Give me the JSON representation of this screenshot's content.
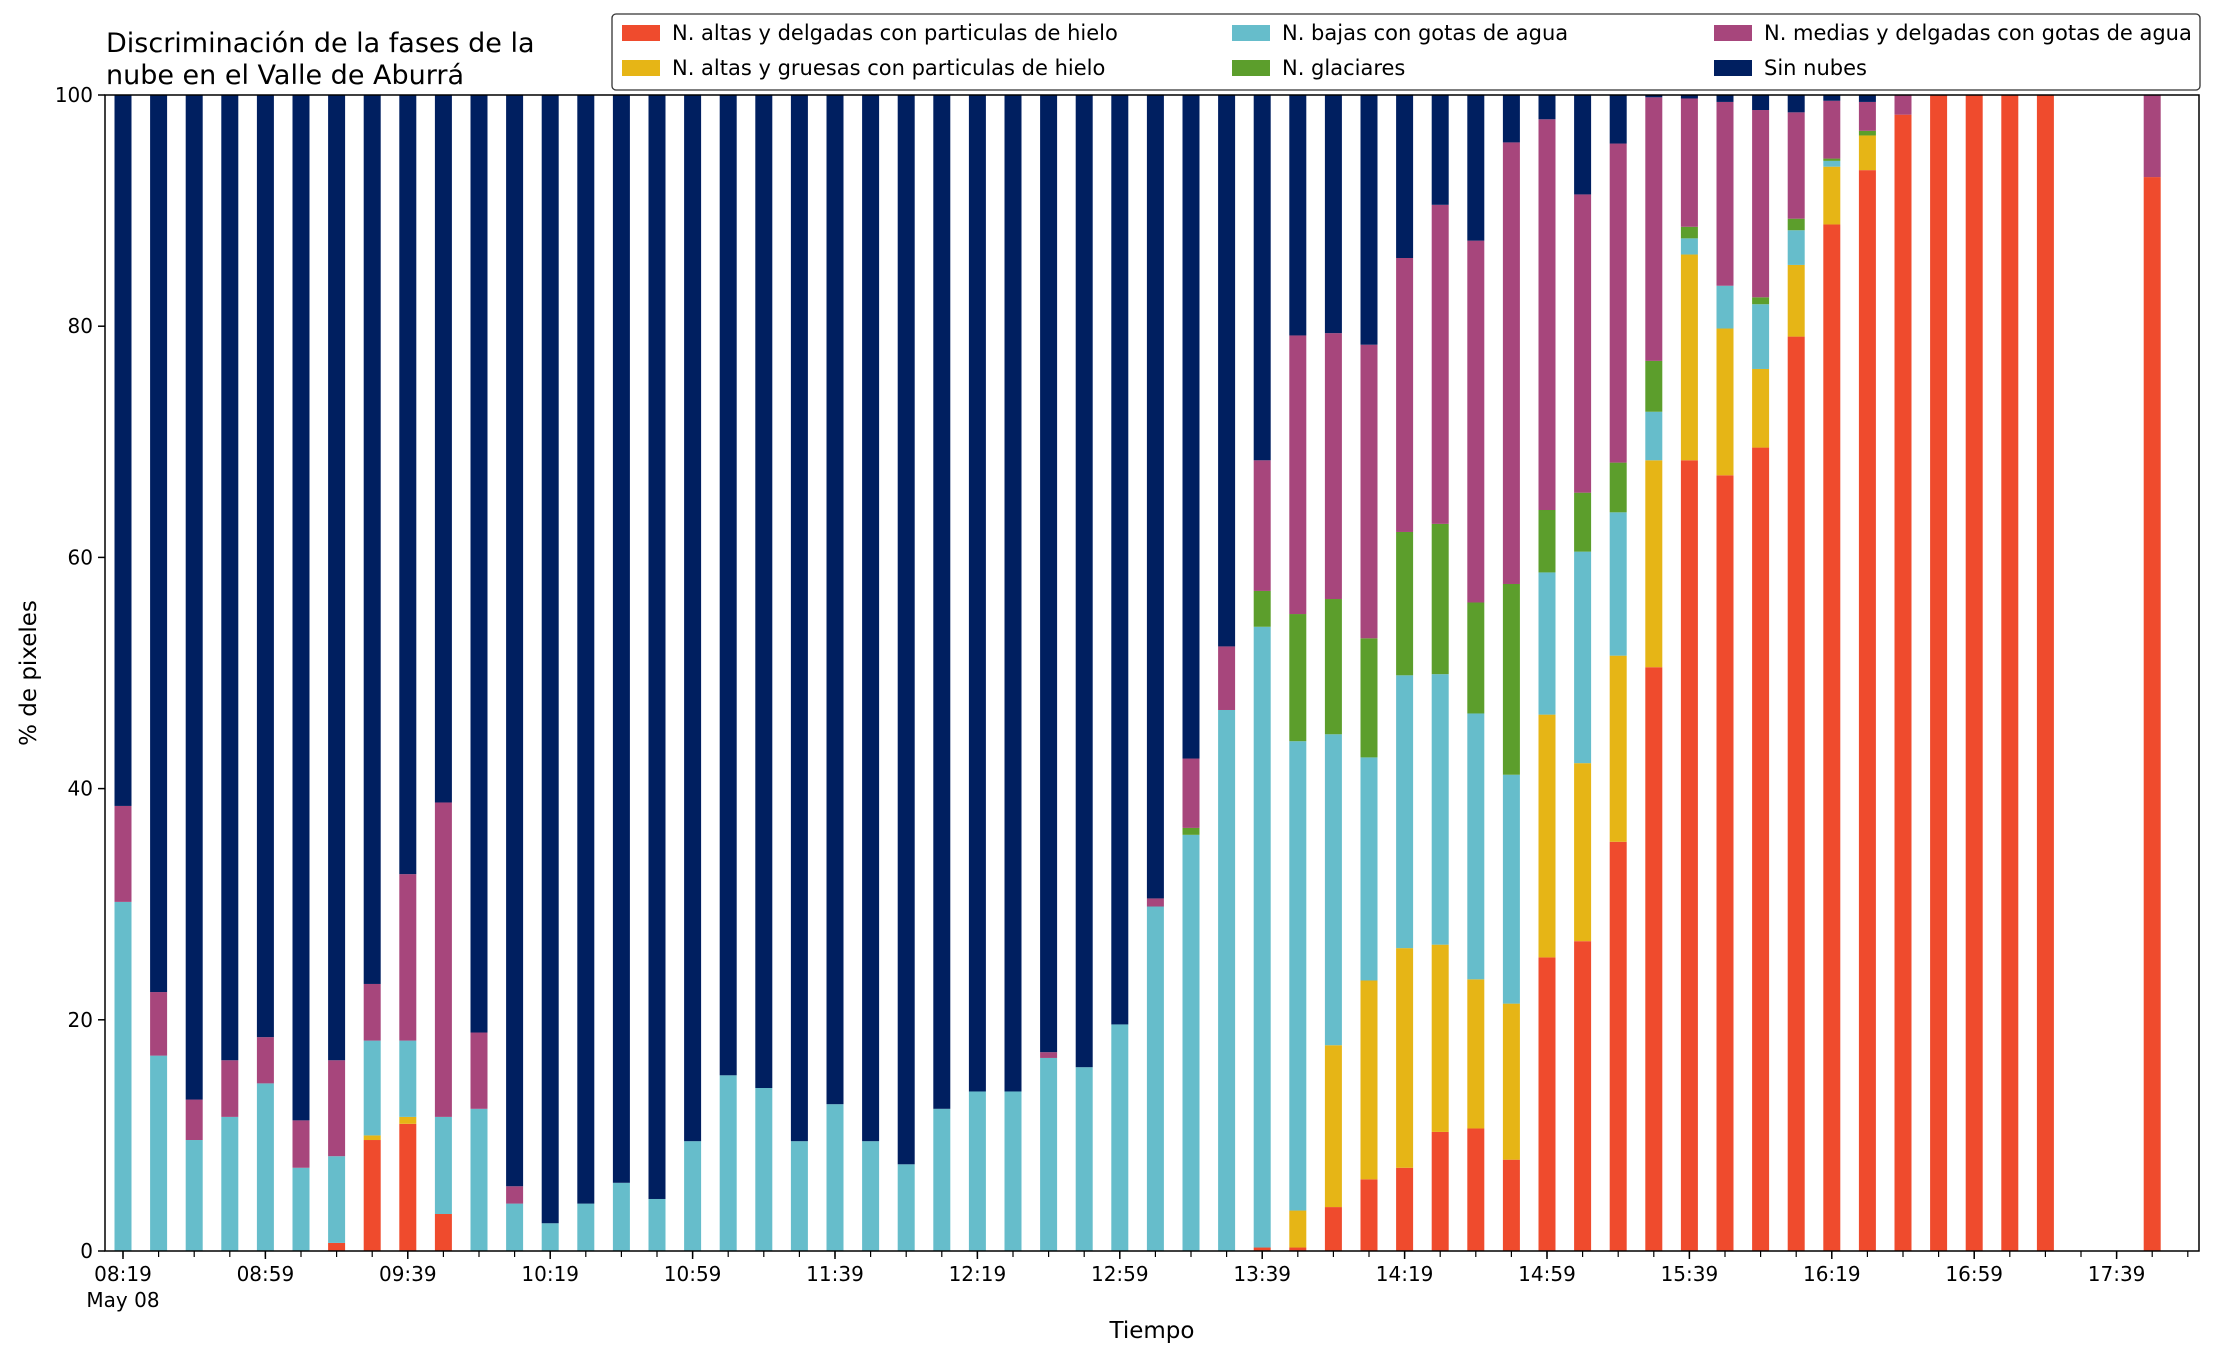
{
  "chart_data": {
    "type": "bar",
    "stacked": true,
    "title_lines": [
      "Discriminación de la fases de la",
      "nube en el Valle de Aburrá"
    ],
    "xlabel": "Tiempo",
    "ylabel": "% de pixeles",
    "ylim": [
      0,
      100
    ],
    "yticks": [
      0,
      20,
      40,
      60,
      80,
      100
    ],
    "x_tick_labels": [
      {
        "index": 0,
        "label": "08:19",
        "sub": "May 08"
      },
      {
        "index": 4,
        "label": "08:59"
      },
      {
        "index": 8,
        "label": "09:39"
      },
      {
        "index": 12,
        "label": "10:19"
      },
      {
        "index": 16,
        "label": "10:59"
      },
      {
        "index": 20,
        "label": "11:39"
      },
      {
        "index": 24,
        "label": "12:19"
      },
      {
        "index": 28,
        "label": "12:59"
      },
      {
        "index": 32,
        "label": "13:39"
      },
      {
        "index": 36,
        "label": "14:19"
      },
      {
        "index": 40,
        "label": "14:59"
      },
      {
        "index": 44,
        "label": "15:39"
      },
      {
        "index": 48,
        "label": "16:19"
      },
      {
        "index": 52,
        "label": "16:59"
      },
      {
        "index": 56,
        "label": "17:39"
      }
    ],
    "x_slots": 58,
    "grid": false,
    "legend_position": "top-right",
    "legend_columns": 3,
    "series": [
      {
        "name": "N. altas y delgadas con particulas de hielo",
        "color": "#EF4B2D",
        "values": [
          0,
          0,
          0,
          0,
          0,
          0,
          0.7,
          9.6,
          11.0,
          3.2,
          0,
          0,
          0,
          0,
          0,
          0,
          0,
          0,
          0,
          0,
          0,
          0,
          0,
          0,
          0,
          0,
          0,
          0,
          0,
          0,
          0,
          0,
          0.3,
          0.3,
          3.8,
          6.2,
          7.2,
          10.3,
          10.6,
          7.9,
          25.4,
          26.8,
          35.4,
          50.5,
          68.4,
          67.1,
          69.5,
          79.1,
          88.8,
          93.5,
          98.3,
          100,
          100,
          100,
          100,
          0,
          0,
          92.9
        ]
      },
      {
        "name": "N. altas y gruesas con particulas de hielo",
        "color": "#E6B516",
        "values": [
          0,
          0,
          0,
          0,
          0,
          0,
          0,
          0.4,
          0.6,
          0,
          0,
          0,
          0,
          0,
          0,
          0,
          0,
          0,
          0,
          0,
          0,
          0,
          0,
          0,
          0,
          0,
          0,
          0,
          0,
          0,
          0,
          0,
          0,
          3.2,
          14.0,
          17.2,
          19.0,
          16.2,
          12.9,
          13.5,
          21.0,
          15.4,
          16.1,
          17.9,
          17.8,
          12.7,
          6.8,
          6.2,
          5.0,
          3.0,
          0,
          0,
          0,
          0,
          0,
          0,
          0,
          0
        ]
      },
      {
        "name": "N. bajas con gotas de agua",
        "color": "#66BDCB",
        "values": [
          30.2,
          16.9,
          9.6,
          11.6,
          14.5,
          7.2,
          7.5,
          8.2,
          6.6,
          8.4,
          12.3,
          4.1,
          2.4,
          4.1,
          5.9,
          4.5,
          9.5,
          15.2,
          14.1,
          9.5,
          12.7,
          9.5,
          7.5,
          12.3,
          13.8,
          13.8,
          16.7,
          15.9,
          19.6,
          29.8,
          36.0,
          46.8,
          53.7,
          40.6,
          26.9,
          19.3,
          23.6,
          23.4,
          23.0,
          19.8,
          12.3,
          18.3,
          12.4,
          4.2,
          1.4,
          3.7,
          5.6,
          3.0,
          0.5,
          0,
          0,
          0,
          0,
          0,
          0,
          0,
          0,
          0
        ]
      },
      {
        "name": "N. glaciares",
        "color": "#5C9E2C",
        "values": [
          0,
          0,
          0,
          0,
          0,
          0,
          0,
          0,
          0,
          0,
          0,
          0,
          0,
          0,
          0,
          0,
          0,
          0,
          0,
          0,
          0,
          0,
          0,
          0,
          0,
          0,
          0,
          0,
          0,
          0,
          0.6,
          0,
          3.1,
          11.0,
          11.7,
          10.3,
          12.4,
          13.0,
          9.6,
          16.5,
          5.4,
          5.1,
          4.3,
          4.4,
          1.0,
          0,
          0.6,
          1.0,
          0.2,
          0.4,
          0,
          0,
          0,
          0,
          0,
          0,
          0,
          0
        ]
      },
      {
        "name": "N. medias y delgadas con gotas de agua",
        "color": "#A7467C",
        "values": [
          8.3,
          5.5,
          3.5,
          4.9,
          4.0,
          4.1,
          8.3,
          4.9,
          14.4,
          27.2,
          6.6,
          1.5,
          0,
          0,
          0,
          0,
          0,
          0,
          0,
          0,
          0,
          0,
          0,
          0,
          0,
          0,
          0.5,
          0,
          0,
          0.7,
          6.0,
          5.5,
          11.3,
          24.1,
          23.0,
          25.4,
          23.7,
          27.6,
          31.3,
          38.2,
          33.8,
          25.8,
          27.6,
          22.8,
          11.1,
          15.9,
          16.2,
          9.2,
          5.0,
          2.5,
          1.7,
          0,
          0,
          0,
          0,
          0,
          0,
          7.1
        ]
      },
      {
        "name": "Sin nubes",
        "color": "#001F60",
        "values": [
          61.5,
          77.6,
          86.9,
          83.5,
          81.5,
          88.7,
          83.5,
          76.9,
          67.4,
          61.2,
          81.1,
          94.4,
          97.6,
          95.9,
          94.1,
          95.5,
          90.5,
          84.8,
          85.9,
          90.5,
          87.3,
          90.5,
          92.5,
          87.7,
          86.2,
          86.2,
          82.8,
          84.1,
          80.4,
          69.5,
          57.4,
          47.7,
          31.6,
          20.8,
          20.6,
          21.6,
          14.1,
          9.5,
          12.6,
          4.1,
          2.1,
          8.6,
          4.2,
          0.2,
          0.3,
          0.6,
          1.3,
          1.5,
          0.5,
          0.6,
          0,
          0,
          0,
          0,
          0,
          0,
          0,
          0
        ]
      }
    ]
  }
}
